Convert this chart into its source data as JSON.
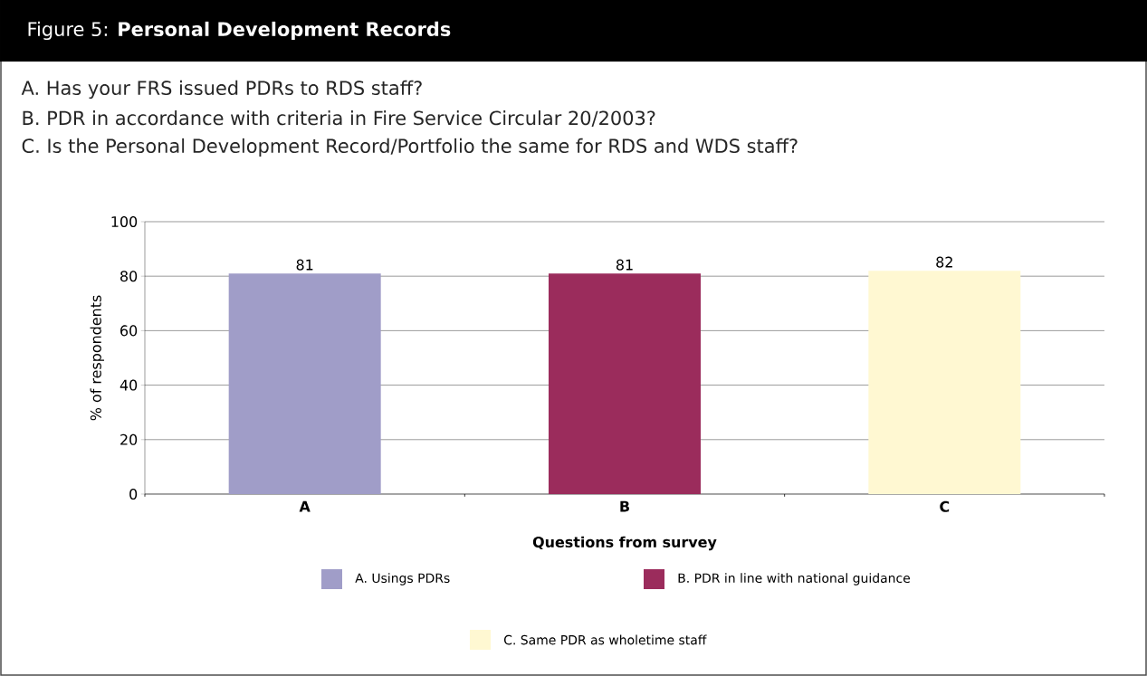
{
  "chart_data": {
    "type": "bar",
    "title": "Figure 5: **Personal Development Records**",
    "annotations": [
      "A. Has your FRS issued PDRs to RDS staff?",
      "B. PDR in accordance with criteria in Fire Service Circular 20/2003?",
      "C. Is the Personal Development Record/Portfolio the same for RDS and WDS staff?"
    ],
    "categories": [
      "A",
      "B",
      "C"
    ],
    "series": [
      {
        "name": "A. Usings PDRs",
        "color": "#a09dc8",
        "values": [
          81,
          null,
          null
        ]
      },
      {
        "name": "B. PDR in line with national guidance",
        "color": "#9b2c5c",
        "values": [
          null,
          81,
          null
        ]
      },
      {
        "name": "C. Same PDR as wholetime staff",
        "color": "#fff8d2",
        "values": [
          null,
          null,
          82
        ]
      }
    ],
    "xlabel": "Questions from survey",
    "ylabel": "% of respondents",
    "ylim": [
      0,
      100
    ],
    "yticks": [
      0,
      20,
      40,
      60,
      80,
      100
    ],
    "grid": "y",
    "legend": "bottom",
    "data_labels": true
  }
}
